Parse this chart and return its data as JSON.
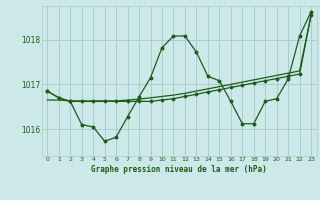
{
  "title": "Graphe pression niveau de la mer (hPa)",
  "bg_color": "#cde8e8",
  "grid_color": "#aacccc",
  "line_color": "#1a5c1a",
  "xlim": [
    -0.5,
    23.5
  ],
  "ylim": [
    1015.4,
    1018.75
  ],
  "yticks": [
    1016,
    1017,
    1018
  ],
  "xticks": [
    0,
    1,
    2,
    3,
    4,
    5,
    6,
    7,
    8,
    9,
    10,
    11,
    12,
    13,
    14,
    15,
    16,
    17,
    18,
    19,
    20,
    21,
    22,
    23
  ],
  "series1_x": [
    0,
    1,
    2,
    3,
    4,
    5,
    6,
    7,
    8,
    9,
    10,
    11,
    12,
    13,
    14,
    15,
    16,
    17,
    18,
    19,
    20,
    21,
    22,
    23
  ],
  "series1_y": [
    1016.65,
    1016.65,
    1016.63,
    1016.63,
    1016.63,
    1016.63,
    1016.63,
    1016.65,
    1016.67,
    1016.7,
    1016.73,
    1016.76,
    1016.8,
    1016.85,
    1016.9,
    1016.95,
    1017.0,
    1017.05,
    1017.1,
    1017.15,
    1017.2,
    1017.25,
    1017.3,
    1018.55
  ],
  "series2_x": [
    0,
    1,
    2,
    3,
    4,
    5,
    6,
    7,
    8,
    9,
    10,
    11,
    12,
    13,
    14,
    15,
    16,
    17,
    18,
    19,
    20,
    21,
    22,
    23
  ],
  "series2_y": [
    1016.85,
    1016.7,
    1016.62,
    1016.1,
    1016.05,
    1015.73,
    1015.82,
    1016.28,
    1016.72,
    1017.15,
    1017.82,
    1018.08,
    1018.08,
    1017.72,
    1017.18,
    1017.08,
    1016.62,
    1016.12,
    1016.12,
    1016.62,
    1016.68,
    1017.12,
    1018.08,
    1018.62
  ],
  "series3_x": [
    0,
    1,
    2,
    3,
    4,
    5,
    6,
    7,
    8,
    9,
    10,
    11,
    12,
    13,
    14,
    15,
    16,
    17,
    18,
    19,
    20,
    21,
    22,
    23
  ],
  "series3_y": [
    1016.85,
    1016.7,
    1016.62,
    1016.62,
    1016.62,
    1016.62,
    1016.62,
    1016.62,
    1016.62,
    1016.62,
    1016.65,
    1016.68,
    1016.73,
    1016.78,
    1016.83,
    1016.88,
    1016.93,
    1016.98,
    1017.03,
    1017.08,
    1017.13,
    1017.18,
    1017.23,
    1018.55
  ]
}
